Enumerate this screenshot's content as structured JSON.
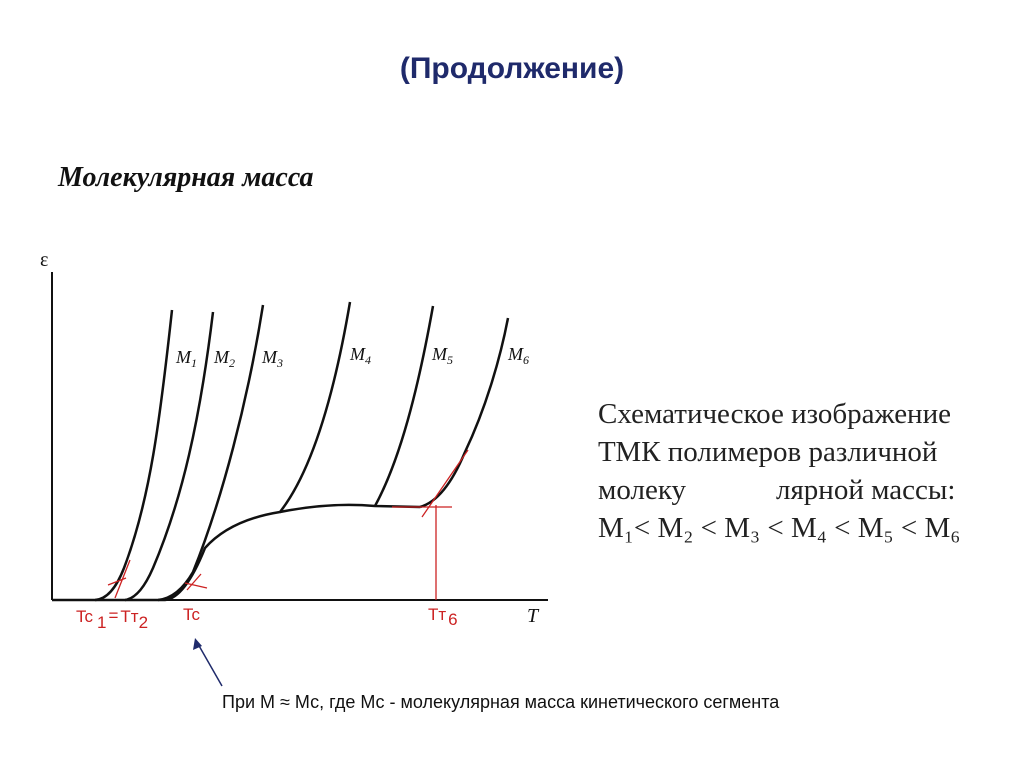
{
  "title": "(Продолжение)",
  "heading": "Молекулярная масса",
  "diagram": {
    "y_axis_label": "ε",
    "x_axis_label": "T",
    "curves": [
      {
        "label": "M",
        "subscript": "1"
      },
      {
        "label": "M",
        "subscript": "2"
      },
      {
        "label": "M",
        "subscript": "3"
      },
      {
        "label": "M",
        "subscript": "4"
      },
      {
        "label": "M",
        "subscript": "5"
      },
      {
        "label": "M",
        "subscript": "6"
      }
    ],
    "markers": {
      "tc1": "Tc",
      "tc1_sub": "1",
      "equals": "=",
      "tt2": "Tт",
      "tt2_sub": "2",
      "tc": "Tc",
      "tt6": "Tт",
      "tt6_sub": "6"
    },
    "colors": {
      "curves": "#111111",
      "markers": "#cc2222",
      "arrow": "#1f2a6b"
    }
  },
  "caption": {
    "line1": "Схематическое изображение",
    "line2": "ТМК полимеров различной",
    "line3a": "молеку",
    "line3b": "лярной массы:",
    "line4": "M₁< M₂ < M₃ < M₄ < M₅ < M₆"
  },
  "footnote": "При М ≈ Мс, где Мс -  молекулярная масса кинетического сегмента"
}
